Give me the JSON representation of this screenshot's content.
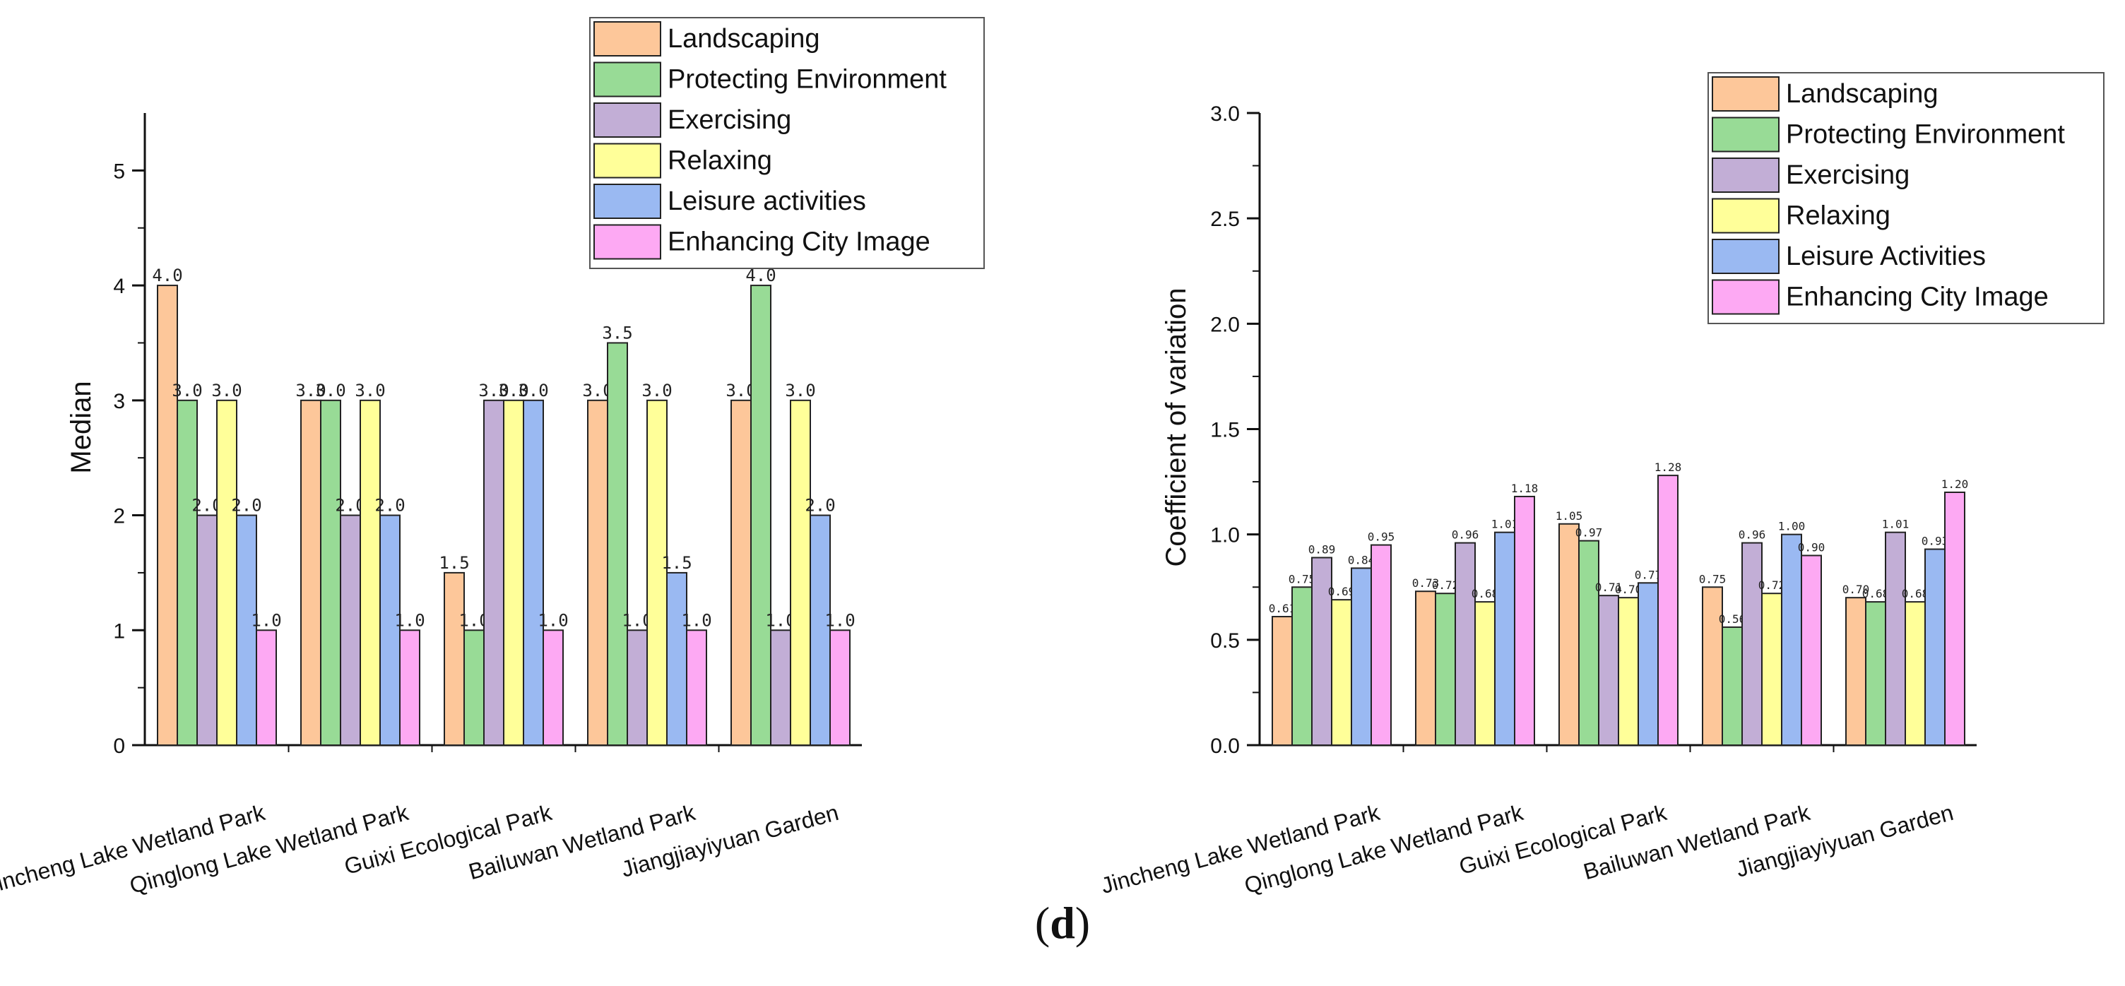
{
  "caption": {
    "open": "(",
    "letter": "d",
    "close": ")"
  },
  "chart_data": [
    {
      "type": "bar",
      "id": "median",
      "title": "",
      "xlabel": "",
      "ylabel": "Median",
      "ylim": [
        0,
        5.5
      ],
      "yticks": [
        0,
        1,
        2,
        3,
        4,
        5
      ],
      "ytick_labels": [
        "0",
        "1",
        "2",
        "3",
        "4",
        "5"
      ],
      "legend_position": "top-right",
      "categories": [
        "Jincheng Lake Wetland Park",
        "Qinglong Lake Wetland Park",
        "Guixi Ecological Park",
        "Bailuwan Wetland Park",
        "Jiangjiayiyuan Garden"
      ],
      "series": [
        {
          "name": "Landscaping",
          "color": "#FDC79A",
          "values": [
            4.0,
            3.0,
            1.5,
            3.0,
            3.0
          ],
          "labels": [
            "4.0",
            "3.0",
            "1.5",
            "3.0",
            "3.0"
          ]
        },
        {
          "name": "Protecting Environment",
          "color": "#98DB96",
          "values": [
            3.0,
            3.0,
            1.0,
            3.5,
            4.0
          ],
          "labels": [
            "3.0",
            "3.0",
            "1.0",
            "3.5",
            "4.0"
          ]
        },
        {
          "name": "Exercising",
          "color": "#C2AED6",
          "values": [
            2.0,
            2.0,
            3.0,
            1.0,
            1.0
          ],
          "labels": [
            "2.0",
            "2.0",
            "3.0",
            "1.0",
            "1.0"
          ]
        },
        {
          "name": "Relaxing",
          "color": "#FFFF99",
          "values": [
            3.0,
            3.0,
            3.0,
            3.0,
            3.0
          ],
          "labels": [
            "3.0",
            "3.0",
            "3.0",
            "3.0",
            "3.0"
          ]
        },
        {
          "name": "Leisure activities",
          "color": "#9AB9F2",
          "values": [
            2.0,
            2.0,
            3.0,
            1.5,
            2.0
          ],
          "labels": [
            "2.0",
            "2.0",
            "3.0",
            "1.5",
            "2.0"
          ]
        },
        {
          "name": "Enhancing City Image",
          "color": "#FDA9F3",
          "values": [
            1.0,
            1.0,
            1.0,
            1.0,
            1.0
          ],
          "labels": [
            "1.0",
            "1.0",
            "1.0",
            "1.0",
            "1.0"
          ]
        }
      ]
    },
    {
      "type": "bar",
      "id": "cv",
      "title": "",
      "xlabel": "",
      "ylabel": "Coefficient of variation",
      "ylim": [
        0,
        3.0
      ],
      "yticks": [
        0,
        0.5,
        1.0,
        1.5,
        2.0,
        2.5,
        3.0
      ],
      "ytick_labels": [
        "0.0",
        "0.5",
        "1.0",
        "1.5",
        "2.0",
        "2.5",
        "3.0"
      ],
      "legend_position": "top-right",
      "categories": [
        "Jincheng Lake Wetland Park",
        "Qinglong Lake Wetland Park",
        "Guixi Ecological Park",
        "Bailuwan Wetland Park",
        "Jiangjiayiyuan Garden"
      ],
      "series": [
        {
          "name": "Landscaping",
          "color": "#FDC79A",
          "values": [
            0.61,
            0.73,
            1.05,
            0.75,
            0.7
          ],
          "labels": [
            "0.61",
            "0.73",
            "1.05",
            "0.75",
            "0.70"
          ]
        },
        {
          "name": "Protecting Environment",
          "color": "#98DB96",
          "values": [
            0.75,
            0.72,
            0.97,
            0.56,
            0.68
          ],
          "labels": [
            "0.75",
            "0.72",
            "0.97",
            "0.56",
            "0.68"
          ]
        },
        {
          "name": "Exercising",
          "color": "#C2AED6",
          "values": [
            0.89,
            0.96,
            0.71,
            0.96,
            1.01
          ],
          "labels": [
            "0.89",
            "0.96",
            "0.71",
            "0.96",
            "1.01"
          ]
        },
        {
          "name": "Relaxing",
          "color": "#FFFF99",
          "values": [
            0.69,
            0.68,
            0.7,
            0.72,
            0.68
          ],
          "labels": [
            "0.69",
            "0.68",
            "0.70",
            "0.72",
            "0.68"
          ]
        },
        {
          "name": "Leisure Activities",
          "color": "#9AB9F2",
          "values": [
            0.84,
            1.01,
            0.77,
            1.0,
            0.93
          ],
          "labels": [
            "0.84",
            "1.01",
            "0.77",
            "1.00",
            "0.93"
          ]
        },
        {
          "name": "Enhancing City Image",
          "color": "#FDA9F3",
          "values": [
            0.95,
            1.18,
            1.28,
            0.9,
            1.2
          ],
          "labels": [
            "0.95",
            "1.18",
            "1.28",
            "0.90",
            "1.20"
          ]
        }
      ]
    }
  ]
}
